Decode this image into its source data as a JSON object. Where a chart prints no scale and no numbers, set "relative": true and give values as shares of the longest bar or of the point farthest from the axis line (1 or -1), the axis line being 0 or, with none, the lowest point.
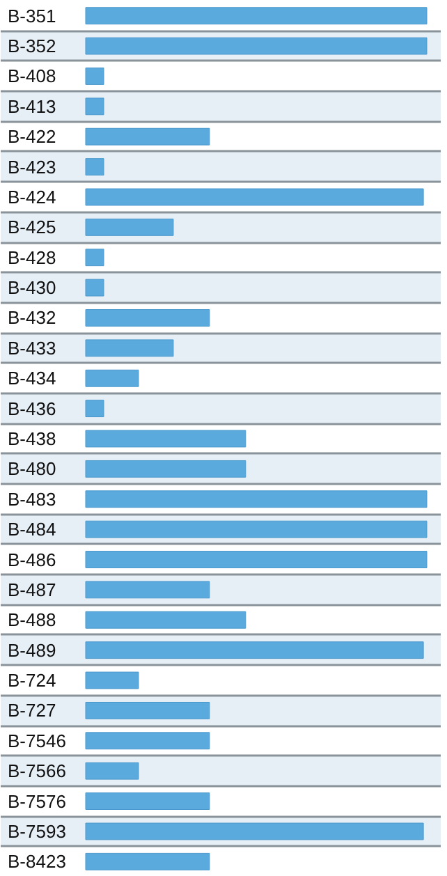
{
  "chart_data": {
    "type": "bar",
    "orientation": "horizontal",
    "relative": true,
    "grid": "y",
    "color": "#5aaade",
    "categories": [
      "B-351",
      "B-352",
      "B-408",
      "B-413",
      "B-422",
      "B-423",
      "B-424",
      "B-425",
      "B-428",
      "B-430",
      "B-432",
      "B-433",
      "B-434",
      "B-436",
      "B-438",
      "B-480",
      "B-483",
      "B-484",
      "B-486",
      "B-487",
      "B-488",
      "B-489",
      "B-724",
      "B-727",
      "B-7546",
      "B-7566",
      "B-7576",
      "B-7593",
      "B-8423"
    ],
    "values": [
      1,
      1,
      0.053,
      0.053,
      0.363,
      0.053,
      0.99,
      0.257,
      0.053,
      0.053,
      0.363,
      0.257,
      0.155,
      0.053,
      0.469,
      0.469,
      1,
      1,
      1,
      0.363,
      0.469,
      0.99,
      0.155,
      0.363,
      0.363,
      0.155,
      0.363,
      0.99,
      0.363
    ]
  }
}
